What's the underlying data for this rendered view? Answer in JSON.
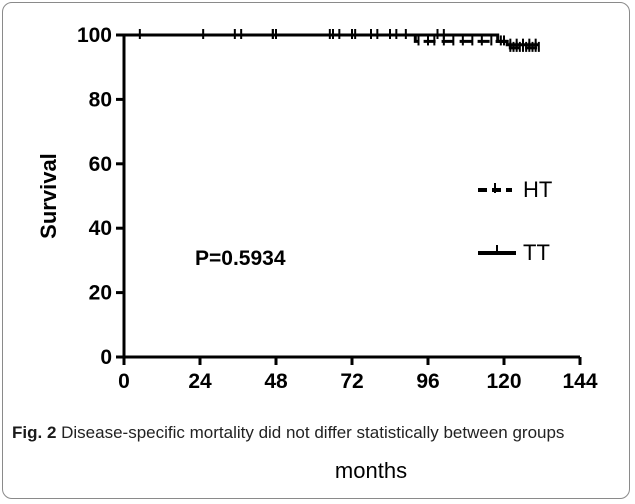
{
  "chart_data": {
    "type": "line",
    "xlabel": "months",
    "ylabel": "Survival",
    "xlim": [
      0,
      144
    ],
    "ylim": [
      0,
      100
    ],
    "x_ticks": [
      0,
      24,
      48,
      72,
      96,
      120,
      144
    ],
    "y_ticks": [
      0,
      20,
      40,
      60,
      80,
      100
    ],
    "annotation": "P=0.5934",
    "grid": false,
    "legend_position": "right",
    "series": [
      {
        "name": "HT",
        "style": "dashed",
        "color": "#000000",
        "steps": [
          [
            0,
            100
          ],
          [
            92,
            100
          ],
          [
            92,
            98
          ],
          [
            122,
            98
          ],
          [
            122,
            96
          ],
          [
            131,
            96
          ]
        ],
        "censor_x": [
          47,
          68,
          93,
          96,
          98,
          101,
          104,
          107,
          110,
          113,
          116,
          119,
          122,
          123,
          124,
          125,
          126,
          127,
          128,
          129,
          130,
          131
        ]
      },
      {
        "name": "TT",
        "style": "solid",
        "color": "#000000",
        "steps": [
          [
            0,
            100
          ],
          [
            118,
            100
          ],
          [
            118,
            98
          ],
          [
            121,
            98
          ],
          [
            121,
            97
          ],
          [
            131,
            97
          ]
        ],
        "censor_x": [
          5,
          25,
          35,
          37,
          47,
          48,
          65,
          66,
          72,
          73,
          78,
          80,
          84,
          86,
          89,
          99,
          101,
          120,
          122,
          124,
          126,
          128,
          130
        ]
      }
    ]
  },
  "caption": {
    "label": "Fig. 2",
    "text": " Disease-specific mortality did not differ statistically between groups"
  }
}
